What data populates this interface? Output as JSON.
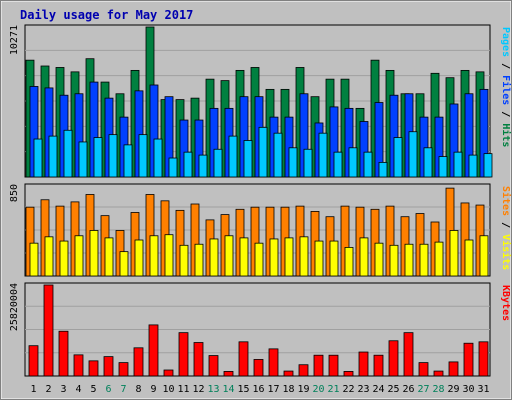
{
  "chart_data": {
    "type": "bar",
    "title": "Daily usage for May 2017",
    "categories": [
      "1",
      "2",
      "3",
      "4",
      "5",
      "6",
      "7",
      "8",
      "9",
      "10",
      "11",
      "12",
      "13",
      "14",
      "15",
      "16",
      "17",
      "18",
      "19",
      "20",
      "21",
      "22",
      "23",
      "24",
      "25",
      "26",
      "27",
      "28",
      "29",
      "30",
      "31"
    ],
    "weekend_days": [
      "6",
      "7",
      "13",
      "14",
      "20",
      "21",
      "27",
      "28"
    ],
    "panels": [
      {
        "name": "hits-files-pages",
        "ylim": [
          0,
          10271
        ],
        "y_tick_label": "10271",
        "legend": [
          {
            "label": "Pages",
            "color": "#00c8ff"
          },
          {
            "label": " / ",
            "color": "#000000"
          },
          {
            "label": "Files",
            "color": "#0040ff"
          },
          {
            "label": " / ",
            "color": "#000000"
          },
          {
            "label": "Hits",
            "color": "#008040"
          }
        ],
        "series": [
          {
            "name": "Hits",
            "color": "#008040",
            "values": [
              8000,
              7600,
              7500,
              7200,
              8100,
              6500,
              5700,
              7300,
              10271,
              5300,
              5300,
              5400,
              6700,
              6600,
              7300,
              7500,
              6000,
              6000,
              7500,
              5500,
              6700,
              6700,
              4700,
              8000,
              7300,
              5700,
              5700,
              7100,
              6800,
              7300,
              7200
            ]
          },
          {
            "name": "Files",
            "color": "#0040ff",
            "values": [
              6200,
              6100,
              5600,
              5700,
              6500,
              5400,
              4100,
              5900,
              6300,
              5500,
              3900,
              3900,
              4700,
              4700,
              5500,
              5500,
              4100,
              4100,
              5700,
              3700,
              4800,
              4700,
              3800,
              5100,
              5600,
              5700,
              4100,
              4100,
              5000,
              5700,
              6000
            ]
          },
          {
            "name": "Pages",
            "color": "#00c8ff",
            "values": [
              2600,
              2800,
              3200,
              2400,
              2700,
              2900,
              2200,
              2900,
              2600,
              1300,
              1700,
              1500,
              1900,
              2800,
              2500,
              3400,
              3000,
              2000,
              1900,
              3000,
              1700,
              2000,
              1700,
              1000,
              2700,
              3100,
              2000,
              1400,
              1700,
              1500,
              1600
            ]
          }
        ]
      },
      {
        "name": "visits-sites",
        "ylim": [
          0,
          850
        ],
        "y_tick_label": "850",
        "legend": [
          {
            "label": "Sites",
            "color": "#ff8000"
          },
          {
            "label": " / ",
            "color": "#000000"
          },
          {
            "label": "Visits",
            "color": "#ffff00"
          }
        ],
        "series": [
          {
            "name": "Visits",
            "color": "#ff8000",
            "values": [
              650,
              720,
              660,
              700,
              770,
              570,
              430,
              600,
              770,
              710,
              620,
              680,
              530,
              580,
              630,
              650,
              650,
              650,
              660,
              610,
              560,
              660,
              650,
              630,
              660,
              560,
              590,
              510,
              830,
              690,
              670
            ]
          },
          {
            "name": "Sites",
            "color": "#ffff00",
            "values": [
              310,
              370,
              330,
              380,
              430,
              360,
              230,
              340,
              380,
              390,
              290,
              300,
              350,
              380,
              360,
              310,
              350,
              360,
              370,
              330,
              330,
              270,
              360,
              310,
              290,
              300,
              300,
              320,
              430,
              340,
              380
            ]
          }
        ]
      },
      {
        "name": "kbytes",
        "ylim": [
          0,
          25820004
        ],
        "y_tick_label": "25820004",
        "legend": [
          {
            "label": "KBytes",
            "color": "#ff0000"
          }
        ],
        "series": [
          {
            "name": "KBytes",
            "color": "#ff0000",
            "values": [
              8600000,
              25820004,
              12700000,
              6000000,
              4300000,
              5500000,
              3800000,
              8000000,
              14500000,
              1700000,
              12300000,
              9500000,
              5800000,
              1300000,
              9700000,
              4700000,
              7700000,
              1400000,
              3200000,
              5900000,
              5900000,
              1300000,
              6800000,
              5900000,
              10000000,
              12300000,
              3800000,
              1400000,
              4000000,
              9300000,
              9700000
            ]
          }
        ]
      }
    ]
  }
}
